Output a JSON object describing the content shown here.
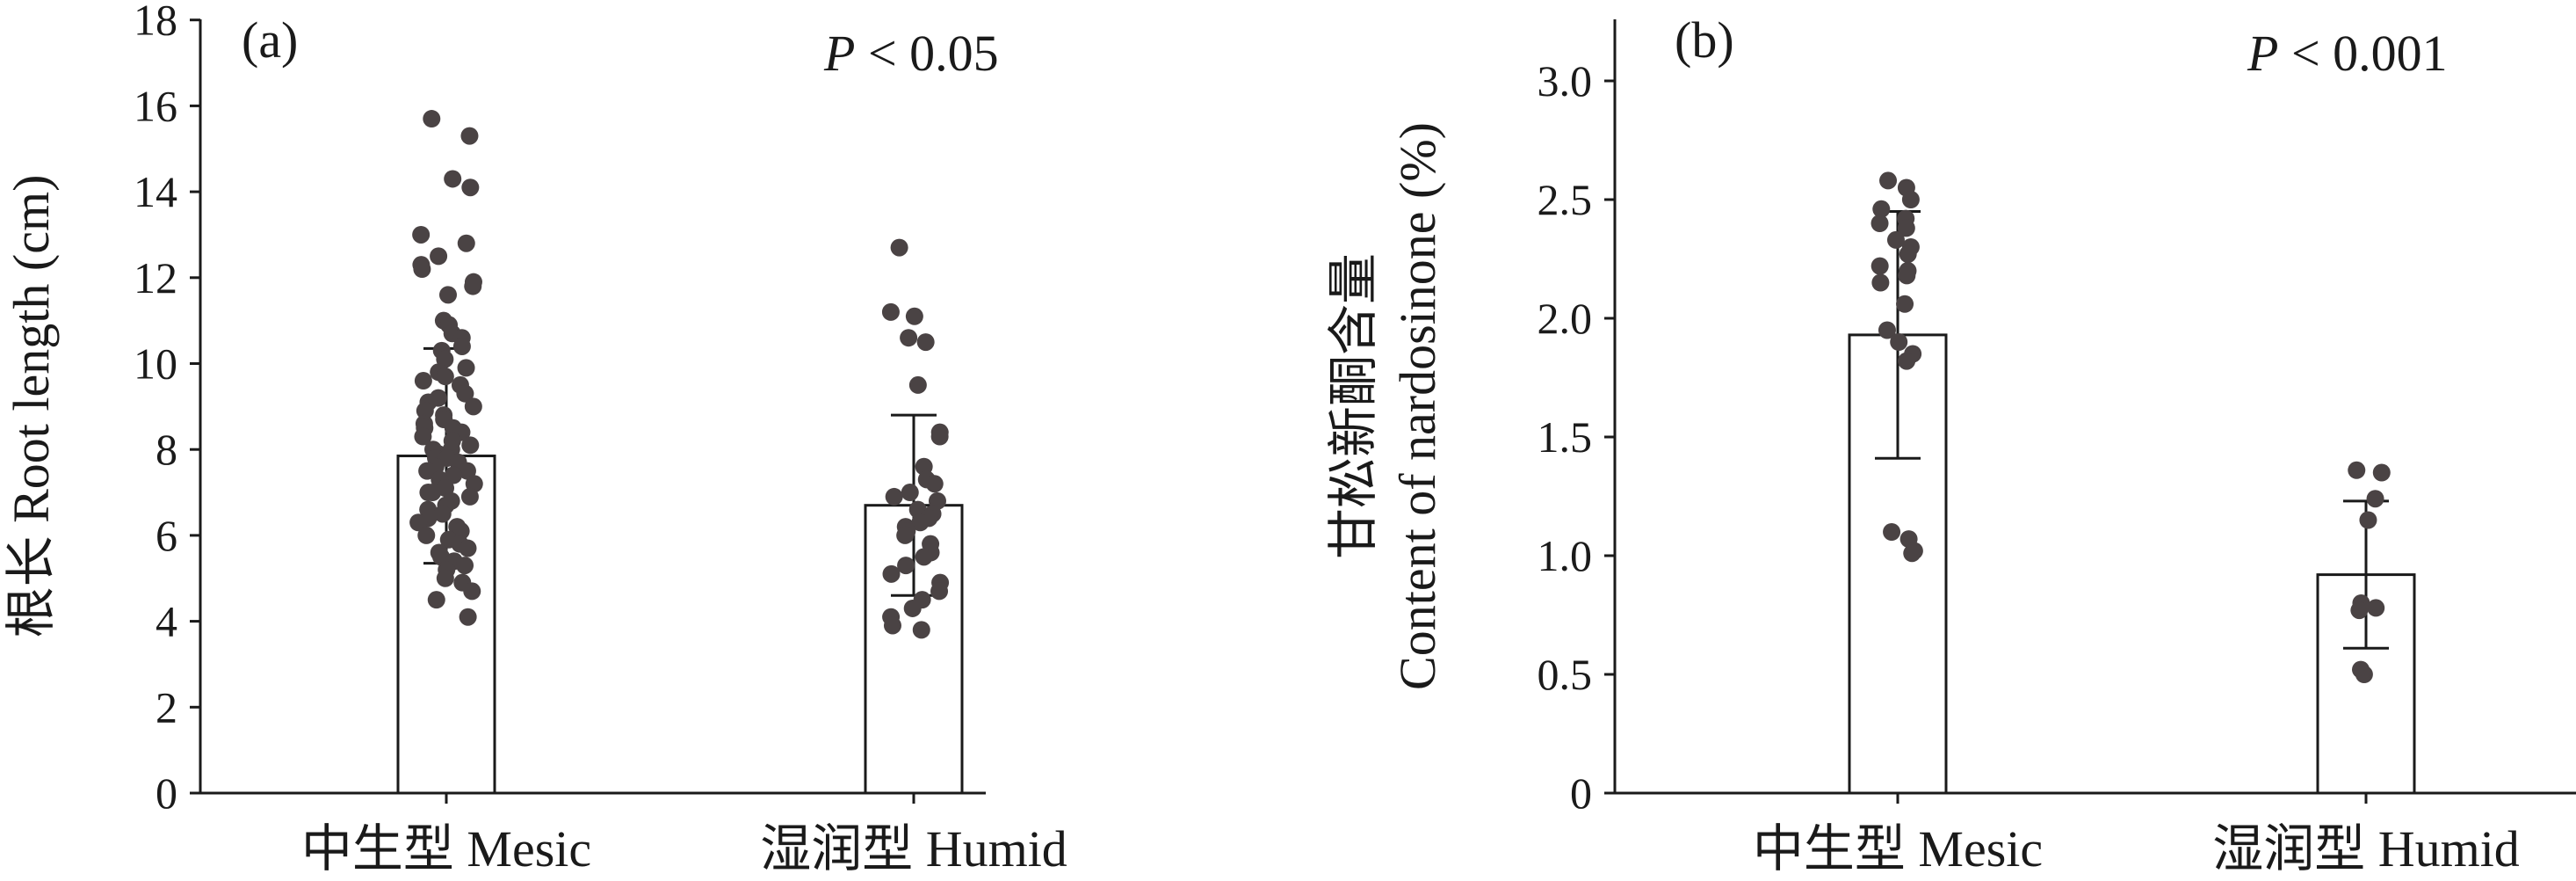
{
  "chart_data": [
    {
      "type": "bar",
      "panel_label": "(a)",
      "annotation": "P < 0.05",
      "annotation_italic": "P",
      "annotation_rest": " < 0.05",
      "ylabel": "根长 Root length (cm)",
      "ylim": [
        0,
        18
      ],
      "yticks": [
        0,
        2,
        4,
        6,
        8,
        10,
        12,
        14,
        16,
        18
      ],
      "categories": [
        "中生型 Mesic",
        "湿润型 Humid"
      ],
      "values": [
        7.85,
        6.7
      ],
      "errors": [
        2.5,
        2.1
      ],
      "points": [
        [
          15.7,
          15.3,
          14.3,
          14.1,
          13.0,
          12.8,
          12.5,
          12.3,
          12.2,
          11.9,
          11.8,
          11.6,
          11.0,
          10.9,
          10.7,
          10.6,
          10.4,
          10.3,
          10.1,
          9.9,
          9.8,
          9.7,
          9.6,
          9.5,
          9.3,
          9.2,
          9.1,
          9.0,
          8.9,
          8.8,
          8.7,
          8.6,
          8.5,
          8.5,
          8.4,
          8.3,
          8.2,
          8.1,
          8.0,
          8.0,
          7.9,
          7.8,
          7.8,
          7.7,
          7.6,
          7.5,
          7.5,
          7.4,
          7.3,
          7.2,
          7.1,
          7.0,
          7.0,
          6.9,
          6.8,
          6.7,
          6.6,
          6.5,
          6.4,
          6.3,
          6.2,
          6.1,
          6.0,
          5.9,
          5.8,
          5.7,
          5.6,
          5.5,
          5.4,
          5.3,
          5.2,
          5.0,
          4.9,
          4.7,
          4.5,
          4.1
        ],
        [
          12.7,
          11.2,
          11.1,
          10.6,
          10.5,
          9.5,
          8.4,
          8.3,
          7.6,
          7.3,
          7.2,
          7.0,
          6.9,
          6.8,
          6.6,
          6.5,
          6.4,
          6.3,
          6.2,
          6.1,
          6.0,
          5.8,
          5.6,
          5.5,
          5.3,
          5.1,
          4.9,
          4.7,
          4.5,
          4.3,
          4.1,
          3.9,
          3.8
        ]
      ]
    },
    {
      "type": "bar",
      "panel_label": "(b)",
      "annotation": "P < 0.001",
      "annotation_italic": "P",
      "annotation_rest": " < 0.001",
      "ylabel_line1": "甘松新酮含量",
      "ylabel_line2": "Content of nardosinone (%)",
      "ylim": [
        0,
        3.25
      ],
      "yticks": [
        "0",
        "0.5",
        "1.0",
        "1.5",
        "2.0",
        "2.5",
        "3.0"
      ],
      "categories": [
        "中生型 Mesic",
        "湿润型 Humid"
      ],
      "values": [
        1.93,
        0.92
      ],
      "errors": [
        0.52,
        0.31
      ],
      "points": [
        [
          2.58,
          2.55,
          2.5,
          2.46,
          2.42,
          2.4,
          2.38,
          2.33,
          2.3,
          2.27,
          2.22,
          2.2,
          2.18,
          2.15,
          2.06,
          1.95,
          1.9,
          1.85,
          1.82,
          1.1,
          1.07,
          1.02,
          1.01
        ],
        [
          1.36,
          1.35,
          1.24,
          1.15,
          0.8,
          0.78,
          0.77,
          0.52,
          0.5
        ]
      ]
    }
  ]
}
